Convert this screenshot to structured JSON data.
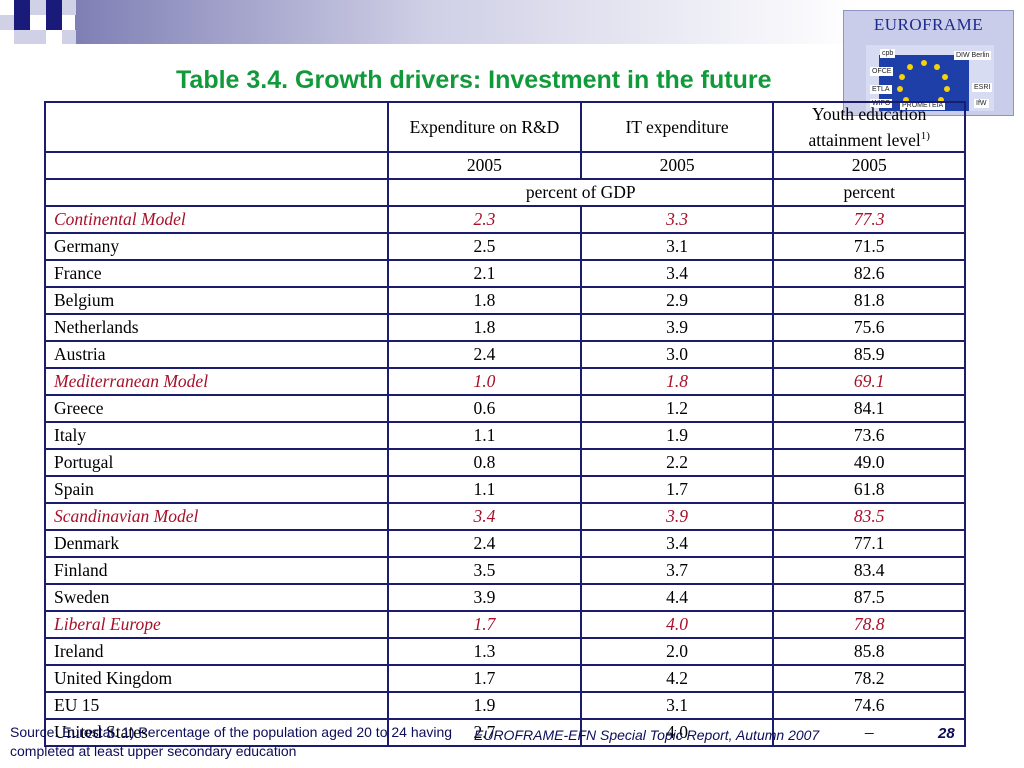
{
  "title": "Table 3.4. Growth drivers: Investment in the future",
  "logo": {
    "name": "EUROFRAME",
    "institutes": [
      "cpb",
      "DIW Berlin",
      "OFCE",
      "ETLA",
      "ESRI",
      "WIFO",
      "PROMETEIA",
      "IfW"
    ]
  },
  "table": {
    "headers": {
      "col1": "Expenditure on R&D",
      "col2": "IT expenditure",
      "col3": "Youth education attainment level",
      "col3_sup": "1)"
    },
    "years": [
      "2005",
      "2005",
      "2005"
    ],
    "units": {
      "gdp": "percent of GDP",
      "percent": "percent"
    },
    "rows": [
      {
        "name": "Continental Model",
        "v1": "2.3",
        "v2": "3.3",
        "v3": "77.3",
        "style": "model"
      },
      {
        "name": "Germany",
        "v1": "2.5",
        "v2": "3.1",
        "v3": "71.5",
        "style": ""
      },
      {
        "name": "France",
        "v1": "2.1",
        "v2": "3.4",
        "v3": "82.6",
        "style": ""
      },
      {
        "name": "Belgium",
        "v1": "1.8",
        "v2": "2.9",
        "v3": "81.8",
        "style": ""
      },
      {
        "name": "Netherlands",
        "v1": "1.8",
        "v2": "3.9",
        "v3": "75.6",
        "style": ""
      },
      {
        "name": "Austria",
        "v1": "2.4",
        "v2": "3.0",
        "v3": "85.9",
        "style": ""
      },
      {
        "name": "Mediterranean Model",
        "v1": "1.0",
        "v2": "1.8",
        "v3": "69.1",
        "style": "model"
      },
      {
        "name": "Greece",
        "v1": "0.6",
        "v2": "1.2",
        "v3": "84.1",
        "style": ""
      },
      {
        "name": "Italy",
        "v1": "1.1",
        "v2": "1.9",
        "v3": "73.6",
        "style": ""
      },
      {
        "name": "Portugal",
        "v1": "0.8",
        "v2": "2.2",
        "v3": "49.0",
        "style": ""
      },
      {
        "name": "Spain",
        "v1": "1.1",
        "v2": "1.7",
        "v3": "61.8",
        "style": ""
      },
      {
        "name": "Scandinavian Model",
        "v1": "3.4",
        "v2": "3.9",
        "v3": "83.5",
        "style": "model"
      },
      {
        "name": "Denmark",
        "v1": "2.4",
        "v2": "3.4",
        "v3": "77.1",
        "style": ""
      },
      {
        "name": "Finland",
        "v1": "3.5",
        "v2": "3.7",
        "v3": "83.4",
        "style": ""
      },
      {
        "name": "Sweden",
        "v1": "3.9",
        "v2": "4.4",
        "v3": "87.5",
        "style": ""
      },
      {
        "name": "Liberal Europe",
        "v1": "1.7",
        "v2": "4.0",
        "v3": "78.8",
        "style": "model"
      },
      {
        "name": "Ireland",
        "v1": "1.3",
        "v2": "2.0",
        "v3": "85.8",
        "style": ""
      },
      {
        "name": "United Kingdom",
        "v1": "1.7",
        "v2": "4.2",
        "v3": "78.2",
        "style": ""
      },
      {
        "name": "EU 15",
        "v1": "1.9",
        "v2": "3.1",
        "v3": "74.6",
        "style": "bold"
      },
      {
        "name": "United States",
        "v1": "2.7",
        "v2": "4.0",
        "v3": "–",
        "style": ""
      }
    ]
  },
  "footer": {
    "source": "Source: Eurostat. 1) Percentage of the population aged 20 to 24 having completed at least upper secondary education",
    "report": "EUROFRAME-EFN Special Topic Report, Autumn 2007",
    "page": "28"
  },
  "colors": {
    "title": "#119a3a",
    "model_rows": "#a8102a",
    "table_border": "#1c1c6e",
    "deco_dark": "#1a1a7a"
  }
}
